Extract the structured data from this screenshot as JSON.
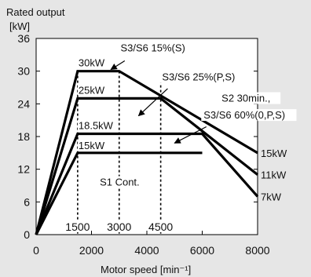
{
  "chart_data": {
    "type": "line",
    "ylabel": "Rated output",
    "yunit": "[kW]",
    "xlabel": "Motor speed [min⁻¹]",
    "xlim": [
      0,
      8000
    ],
    "ylim": [
      0,
      36
    ],
    "xticks": [
      0,
      2000,
      4000,
      6000,
      8000
    ],
    "yticks": [
      0,
      6,
      12,
      18,
      24,
      30,
      36
    ],
    "grid": false,
    "series": [
      {
        "name": "30kW",
        "x": [
          0,
          1500,
          3000,
          8000
        ],
        "y": [
          0,
          30,
          30,
          15
        ],
        "end_label": "15kW"
      },
      {
        "name": "25kW",
        "x": [
          0,
          1500,
          4500,
          8000
        ],
        "y": [
          0,
          25,
          25,
          11
        ],
        "end_label": "11kW"
      },
      {
        "name": "18.5kW",
        "x": [
          0,
          1500,
          6000,
          8000
        ],
        "y": [
          0,
          18.5,
          18.5,
          7
        ],
        "end_label": "7kW"
      },
      {
        "name": "15kW",
        "x": [
          0,
          1500,
          6000
        ],
        "y": [
          0,
          15,
          15
        ]
      }
    ],
    "verticals": [
      {
        "x": 1500,
        "label": "1500"
      },
      {
        "x": 3000,
        "label": "3000"
      },
      {
        "x": 4500,
        "label": "4500"
      }
    ],
    "annotations": [
      {
        "text": "S3/S6 15%(S)",
        "tx": 3050,
        "ty": 33.6,
        "ax1": 3200,
        "ay1": 31.9,
        "ax2": 2700,
        "ay2": 30.3
      },
      {
        "text": "S3/S6 25%(P,S)",
        "tx": 4550,
        "ty": 28.3,
        "ax1": 4750,
        "ay1": 26.8,
        "ax2": 3700,
        "ay2": 21.8
      },
      {
        "text": "S2 30min.,",
        "tx": 6700,
        "ty": 24.4
      },
      {
        "text": "S3/S6 60%(0,P,S)",
        "tx": 6050,
        "ty": 21.3,
        "ax1": 6150,
        "ay1": 19.8,
        "ax2": 5000,
        "ay2": 16.8
      },
      {
        "text": "S1 Cont.",
        "tx": 2300,
        "ty": 9.0
      }
    ]
  }
}
